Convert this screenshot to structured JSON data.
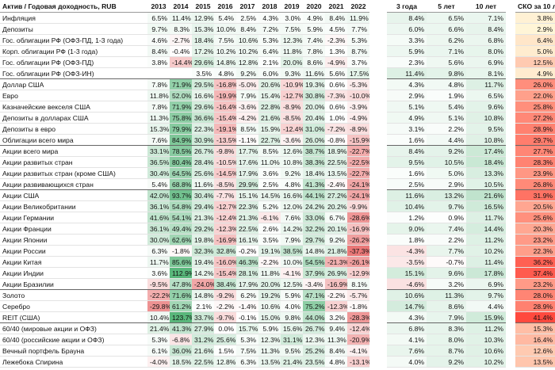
{
  "table": {
    "header": [
      "Актив / Годовая доходность, RUB",
      "2013",
      "2014",
      "2015",
      "2016",
      "2017",
      "2018",
      "2019",
      "2020",
      "2021",
      "2022",
      "3 года",
      "5 лет",
      "10 лет",
      "СКО за 10 лет"
    ],
    "sections": [
      6,
      12,
      16,
      25,
      28
    ],
    "rows": [
      [
        "Инфляция",
        "6.5%",
        "11.4%",
        "12.9%",
        "5.4%",
        "2.5%",
        "4.3%",
        "3.0%",
        "4.9%",
        "8.4%",
        "11.9%",
        "8.4%",
        "6.5%",
        "7.1%",
        "3.8%"
      ],
      [
        "Депозиты",
        "9.7%",
        "8.3%",
        "15.3%",
        "10.0%",
        "8.4%",
        "7.2%",
        "7.5%",
        "5.9%",
        "4.5%",
        "7.7%",
        "6.0%",
        "6.6%",
        "8.4%",
        "2.9%"
      ],
      [
        "Гос. облигации РФ (ОФЗ-ПД, 1-3 года)",
        "4.6%",
        "-2.7%",
        "18.4%",
        "7.5%",
        "10.6%",
        "5.3%",
        "12.3%",
        "7.4%",
        "-2.3%",
        "5.3%",
        "3.3%",
        "6.2%",
        "6.8%",
        "6.4%"
      ],
      [
        "Корп. облигации РФ (1-3 года)",
        "8.4%",
        "-0.4%",
        "17.2%",
        "10.2%",
        "10.2%",
        "6.4%",
        "11.8%",
        "7.8%",
        "1.3%",
        "8.7%",
        "5.9%",
        "7.1%",
        "8.0%",
        "5.0%"
      ],
      [
        "Гос. облигации РФ (ОФЗ-ПД)",
        "3.8%",
        "-14.4%",
        "29.6%",
        "14.8%",
        "12.8%",
        "2.1%",
        "20.0%",
        "8.6%",
        "-4.9%",
        "3.7%",
        "2.3%",
        "5.6%",
        "6.9%",
        "12.5%"
      ],
      [
        "Гос. облигации РФ (ОФЗ-ИН)",
        null,
        null,
        "3.5%",
        "4.8%",
        "9.2%",
        "6.0%",
        "9.3%",
        "11.6%",
        "5.6%",
        "17.5%",
        "11.4%",
        "9.8%",
        "8.1%",
        "4.9%"
      ],
      [
        "Доллар США",
        "7.8%",
        "71.9%",
        "29.5%",
        "-16.8%",
        "-5.0%",
        "20.6%",
        "-10.9%",
        "19.3%",
        "0.6%",
        "-5.3%",
        "4.3%",
        "4.8%",
        "11.7%",
        "26.0%"
      ],
      [
        "Евро",
        "11.8%",
        "52.0%",
        "16.6%",
        "-19.9%",
        "7.9%",
        "15.4%",
        "-12.7%",
        "30.8%",
        "-7.3%",
        "-10.0%",
        "2.9%",
        "1.9%",
        "6.5%",
        "22.0%"
      ],
      [
        "Казначейские векселя США",
        "7.8%",
        "71.9%",
        "29.6%",
        "-16.4%",
        "-3.6%",
        "22.8%",
        "-8.9%",
        "20.0%",
        "0.6%",
        "-3.9%",
        "5.1%",
        "5.4%",
        "9.6%",
        "25.8%"
      ],
      [
        "Депозиты в долларах США",
        "11.3%",
        "75.8%",
        "36.6%",
        "-15.4%",
        "-4.2%",
        "21.6%",
        "-8.5%",
        "20.4%",
        "1.0%",
        "-4.9%",
        "4.9%",
        "5.1%",
        "10.8%",
        "27.2%"
      ],
      [
        "Депозиты в евро",
        "15.3%",
        "79.9%",
        "22.3%",
        "-19.1%",
        "8.5%",
        "15.9%",
        "-12.4%",
        "31.0%",
        "-7.2%",
        "-8.9%",
        "3.1%",
        "2.2%",
        "9.5%",
        "28.9%"
      ],
      [
        "Облигации всего мира",
        "7.6%",
        "84.9%",
        "30.9%",
        "-13.5%",
        "-1.1%",
        "22.7%",
        "-3.6%",
        "26.0%",
        "-0.8%",
        "-15.9%",
        "1.6%",
        "4.4%",
        "10.8%",
        "29.7%"
      ],
      [
        "Акции всего мира",
        "33.1%",
        "78.5%",
        "26.7%",
        "-9.8%",
        "17.7%",
        "8.5%",
        "12.6%",
        "38.7%",
        "18.9%",
        "-22.7%",
        "8.4%",
        "9.2%",
        "17.4%",
        "27.7%"
      ],
      [
        "Акции развитых стран",
        "36.5%",
        "80.4%",
        "28.4%",
        "-10.5%",
        "17.6%",
        "11.0%",
        "10.8%",
        "38.3%",
        "22.5%",
        "-22.5%",
        "9.5%",
        "10.5%",
        "18.4%",
        "28.3%"
      ],
      [
        "Акции развитых стран (кроме США)",
        "30.4%",
        "64.5%",
        "25.6%",
        "-14.5%",
        "17.9%",
        "3.6%",
        "9.2%",
        "18.4%",
        "13.5%",
        "-22.7%",
        "1.6%",
        "5.0%",
        "13.3%",
        "23.9%"
      ],
      [
        "Акции развивающихся стран",
        "5.4%",
        "68.8%",
        "11.6%",
        "-8.5%",
        "29.9%",
        "2.5%",
        "4.8%",
        "41.3%",
        "-2.4%",
        "-24.1%",
        "2.5%",
        "2.9%",
        "10.5%",
        "26.8%"
      ],
      [
        "Акции США",
        "42.0%",
        "93.7%",
        "30.4%",
        "-7.7%",
        "15.1%",
        "14.5%",
        "16.6%",
        "44.1%",
        "27.2%",
        "-24.1%",
        "11.6%",
        "13.2%",
        "21.6%",
        "31.9%"
      ],
      [
        "Акции Великобритании",
        "36.1%",
        "54.8%",
        "29.4%",
        "-12.7%",
        "22.3%",
        "5.2%",
        "12.0%",
        "24.2%",
        "20.2%",
        "-9.9%",
        "10.4%",
        "9.7%",
        "16.5%",
        "20.5%"
      ],
      [
        "Акции Германии",
        "41.6%",
        "54.1%",
        "21.3%",
        "-12.4%",
        "21.3%",
        "-6.1%",
        "7.6%",
        "33.0%",
        "6.7%",
        "-28.6%",
        "1.2%",
        "0.9%",
        "11.7%",
        "25.6%"
      ],
      [
        "Акции Франции",
        "36.1%",
        "49.4%",
        "29.2%",
        "-12.3%",
        "22.5%",
        "2.6%",
        "14.2%",
        "32.2%",
        "20.1%",
        "-16.9%",
        "9.0%",
        "7.4%",
        "14.4%",
        "20.3%"
      ],
      [
        "Акции Японии",
        "30.0%",
        "62.6%",
        "19.8%",
        "-16.9%",
        "16.1%",
        "3.5%",
        "7.9%",
        "29.7%",
        "9.2%",
        "-26.2%",
        "1.8%",
        "2.2%",
        "11.2%",
        "23.2%"
      ],
      [
        "Акции России",
        "6.3%",
        "-1.8%",
        "32.3%",
        "32.8%",
        "-0.2%",
        "19.1%",
        "38.5%",
        "14.8%",
        "21.8%",
        "-37.3%",
        "-4.3%",
        "7.7%",
        "10.2%",
        "22.3%"
      ],
      [
        "Акции Китая",
        "11.7%",
        "85.6%",
        "19.4%",
        "-16.0%",
        "46.3%",
        "-2.2%",
        "10.0%",
        "54.5%",
        "-21.3%",
        "-26.1%",
        "-3.5%",
        "-0.7%",
        "11.4%",
        "36.2%"
      ],
      [
        "Акции Индии",
        "3.6%",
        "112.9%",
        "14.2%",
        "-15.4%",
        "28.1%",
        "11.8%",
        "-4.1%",
        "37.9%",
        "26.9%",
        "-12.9%",
        "15.1%",
        "9.6%",
        "17.8%",
        "37.4%"
      ],
      [
        "Акции Бразилии",
        "-9.5%",
        "47.8%",
        "-24.0%",
        "38.4%",
        "17.9%",
        "20.0%",
        "12.5%",
        "-3.4%",
        "-16.9%",
        "8.1%",
        "-4.6%",
        "3.2%",
        "6.9%",
        "23.2%"
      ],
      [
        "Золото",
        "-22.2%",
        "71.6%",
        "14.8%",
        "-9.2%",
        "6.2%",
        "19.2%",
        "5.9%",
        "47.1%",
        "-2.2%",
        "-5.7%",
        "10.6%",
        "11.3%",
        "9.7%",
        "28.0%"
      ],
      [
        "Серебро",
        "-29.8%",
        "61.2%",
        "2.1%",
        "-2.2%",
        "-1.4%",
        "10.6%",
        "4.0%",
        "75.2%",
        "-12.3%",
        "-1.8%",
        "14.7%",
        "8.6%",
        "4.4%",
        "28.9%"
      ],
      [
        "REIT (США)",
        "10.4%",
        "123.7%",
        "33.7%",
        "-9.7%",
        "-0.1%",
        "15.0%",
        "9.8%",
        "44.0%",
        "3.2%",
        "-28.3%",
        "4.3%",
        "7.9%",
        "15.9%",
        "41.4%"
      ],
      [
        "60/40 (мировые акции и ОФЗ)",
        "21.4%",
        "41.3%",
        "27.9%",
        "0.0%",
        "15.7%",
        "5.9%",
        "15.6%",
        "26.7%",
        "9.4%",
        "-12.4%",
        "6.8%",
        "8.3%",
        "11.2%",
        "15.3%"
      ],
      [
        "60/40 (российские акции и ОФЗ)",
        "5.3%",
        "-6.8%",
        "31.2%",
        "25.6%",
        "5.3%",
        "12.3%",
        "31.1%",
        "12.3%",
        "11.3%",
        "-20.9%",
        "4.1%",
        "8.0%",
        "10.3%",
        "16.4%"
      ],
      [
        "Вечный портфель Брауна",
        "6.1%",
        "36.0%",
        "21.6%",
        "1.5%",
        "7.5%",
        "11.3%",
        "9.5%",
        "25.2%",
        "8.4%",
        "-4.1%",
        "7.6%",
        "8.7%",
        "10.6%",
        "12.6%"
      ],
      [
        "Лежебока Спирина",
        "-4.0%",
        "18.5%",
        "22.5%",
        "12.8%",
        "6.3%",
        "13.5%",
        "21.4%",
        "23.5%",
        "4.8%",
        "-13.1%",
        "4.0%",
        "9.2%",
        "10.2%",
        "13.5%"
      ]
    ]
  }
}
